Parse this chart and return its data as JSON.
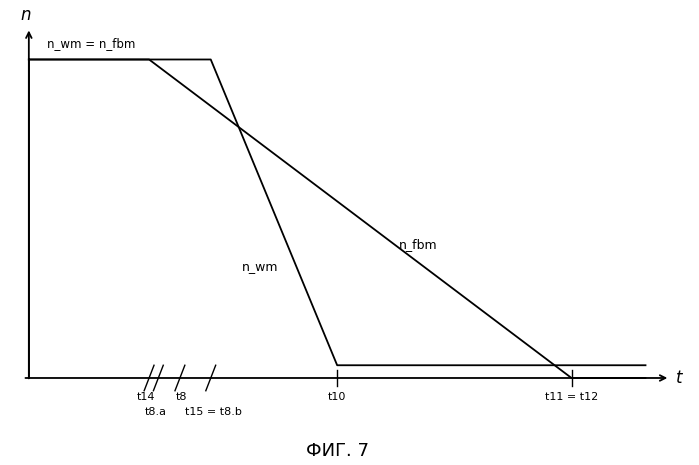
{
  "title": "ФИГ. 7",
  "xlabel": "t",
  "ylabel": "n",
  "label_top": "n_wm = n_fbm",
  "n_high": 1.0,
  "n_low": 0.04,
  "t14": 0.195,
  "t8": 0.245,
  "t8a": 0.21,
  "t15_t8b": 0.295,
  "t10": 0.5,
  "t11_t12": 0.88,
  "line_color": "#000000",
  "bg_color": "#ffffff",
  "fig_width": 6.99,
  "fig_height": 4.65,
  "dpi": 100,
  "label_nwm": "n_wm",
  "label_nfbm": "n_fbm"
}
